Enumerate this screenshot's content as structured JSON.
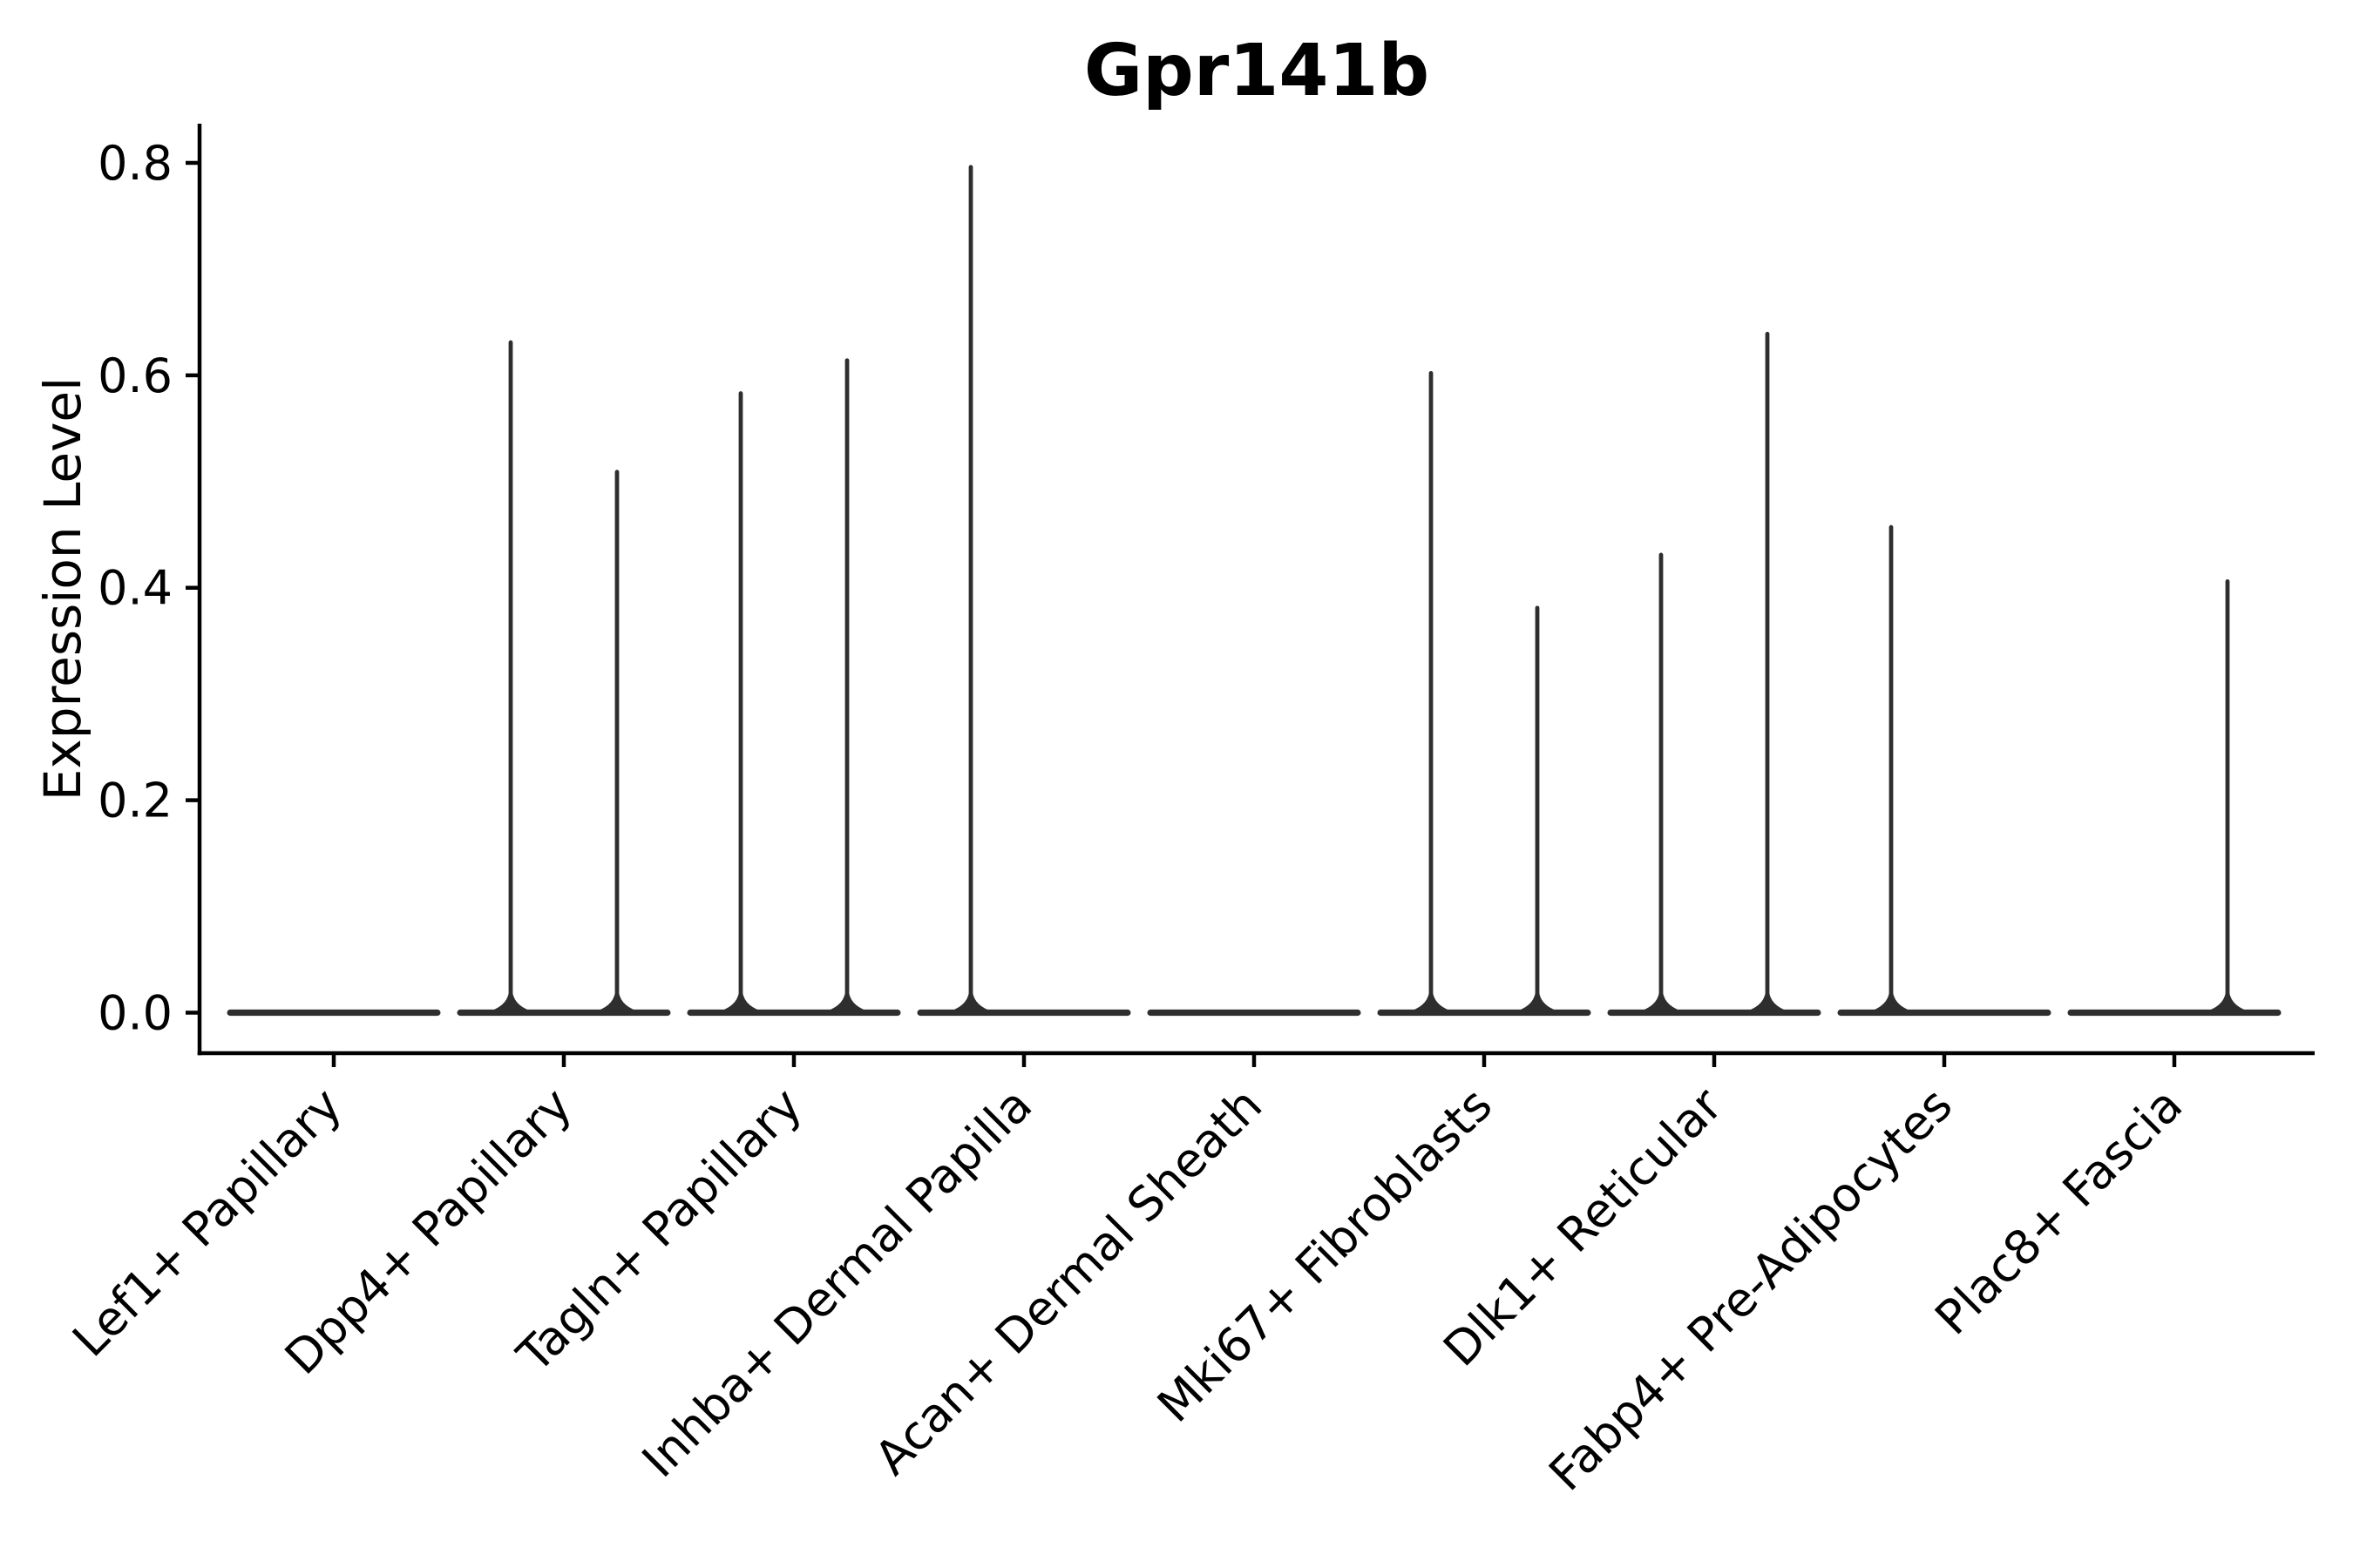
{
  "chart_data": {
    "type": "violin",
    "title": "Gpr141b",
    "ylabel": "Expression Level",
    "xlabel": "",
    "grid": false,
    "legend": null,
    "ylim": [
      -0.0375,
      0.8355
    ],
    "yticks": [
      {
        "label": "0.0",
        "value": 0.0
      },
      {
        "label": "0.2",
        "value": 0.2
      },
      {
        "label": "0.4",
        "value": 0.4
      },
      {
        "label": "0.6",
        "value": 0.6
      },
      {
        "label": "0.8",
        "value": 0.8
      }
    ],
    "categories": [
      "Lef1+ Papillary",
      "Dpp4+ Papillary",
      "Tagln+ Papillary",
      "Inhba+ Dermal Papilla",
      "Acan+ Dermal Sheath",
      "Mki67+ Fibroblasts",
      "Dlk1+ Reticular",
      "Fabp4+ Pre-Adipocytes",
      "Plac8+ Fascia"
    ],
    "violins_per_category": 2,
    "series": [
      {
        "category": "Lef1+ Papillary",
        "max_expression": [
          0,
          0
        ]
      },
      {
        "category": "Dpp4+ Papillary",
        "max_expression": [
          0.633,
          0.511
        ]
      },
      {
        "category": "Tagln+ Papillary",
        "max_expression": [
          0.585,
          0.616
        ]
      },
      {
        "category": "Inhba+ Dermal Papilla",
        "max_expression": [
          0.798,
          0
        ]
      },
      {
        "category": "Acan+ Dermal Sheath",
        "max_expression": [
          0,
          0
        ]
      },
      {
        "category": "Mki67+ Fibroblasts",
        "max_expression": [
          0.604,
          0.383
        ]
      },
      {
        "category": "Dlk1+ Reticular",
        "max_expression": [
          0.433,
          0.641
        ]
      },
      {
        "category": "Fabp4+ Pre-Adipocytes",
        "max_expression": [
          0.459,
          0
        ]
      },
      {
        "category": "Plac8+ Fascia",
        "max_expression": [
          0,
          0.408
        ]
      }
    ],
    "colors": {
      "violin": "#2e2e2e",
      "axis": "#000000",
      "text": "#000000",
      "background": "#ffffff"
    }
  }
}
